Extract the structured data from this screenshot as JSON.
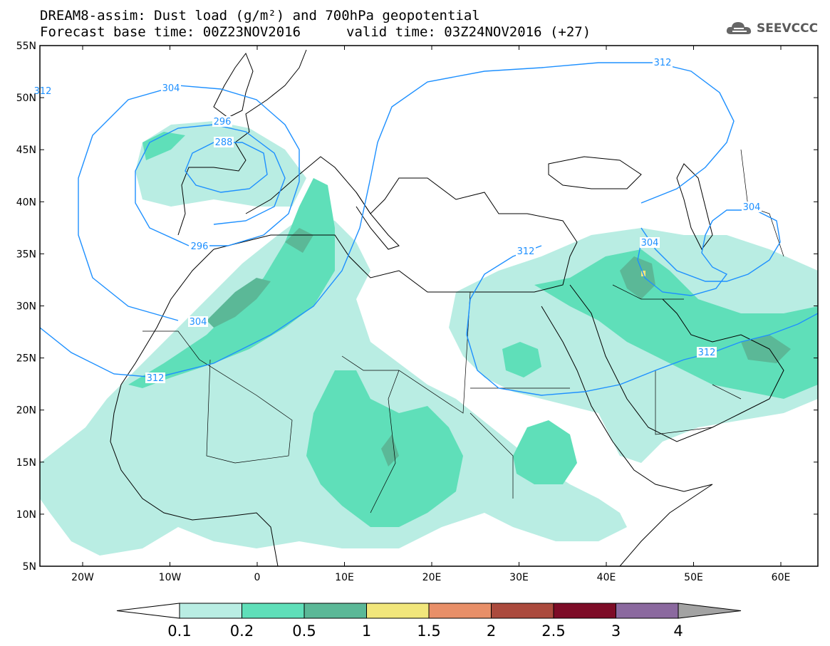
{
  "header": {
    "title_line1": "DREAM8-assim: Dust load (g/m²) and 700hPa geopotential",
    "base_time": "Forecast base time: 00Z23NOV2016",
    "valid_time": "valid time: 03Z24NOV2016 (+27)"
  },
  "logo": {
    "text": "SEEVCCC",
    "icon": "cloud-icon"
  },
  "axes": {
    "lat_labels": [
      "55N",
      "50N",
      "45N",
      "40N",
      "35N",
      "30N",
      "25N",
      "20N",
      "15N",
      "10N",
      "5N"
    ],
    "lon_labels": [
      "20W",
      "10W",
      "0",
      "10E",
      "20E",
      "30E",
      "40E",
      "50E",
      "60E"
    ]
  },
  "contour_labels": [
    "312",
    "304",
    "296",
    "288",
    "296",
    "304",
    "312",
    "312",
    "304",
    "304",
    "312",
    "312"
  ],
  "colorbar": {
    "labels": [
      "0.1",
      "0.2",
      "0.5",
      "1",
      "1.5",
      "2",
      "2.5",
      "3",
      "4"
    ],
    "colors": [
      "#ffffff",
      "#b9ede3",
      "#5fdfb9",
      "#5bb897",
      "#f1e67b",
      "#e88f68",
      "#ab4a3d",
      "#7d0c27",
      "#8b699f",
      "#a3a3a3"
    ]
  },
  "colors": {
    "level_01": "#b9ede3",
    "level_02": "#5fdfb9",
    "level_05": "#5bb897",
    "level_1": "#f1e67b",
    "contour": "#1e90ff"
  }
}
